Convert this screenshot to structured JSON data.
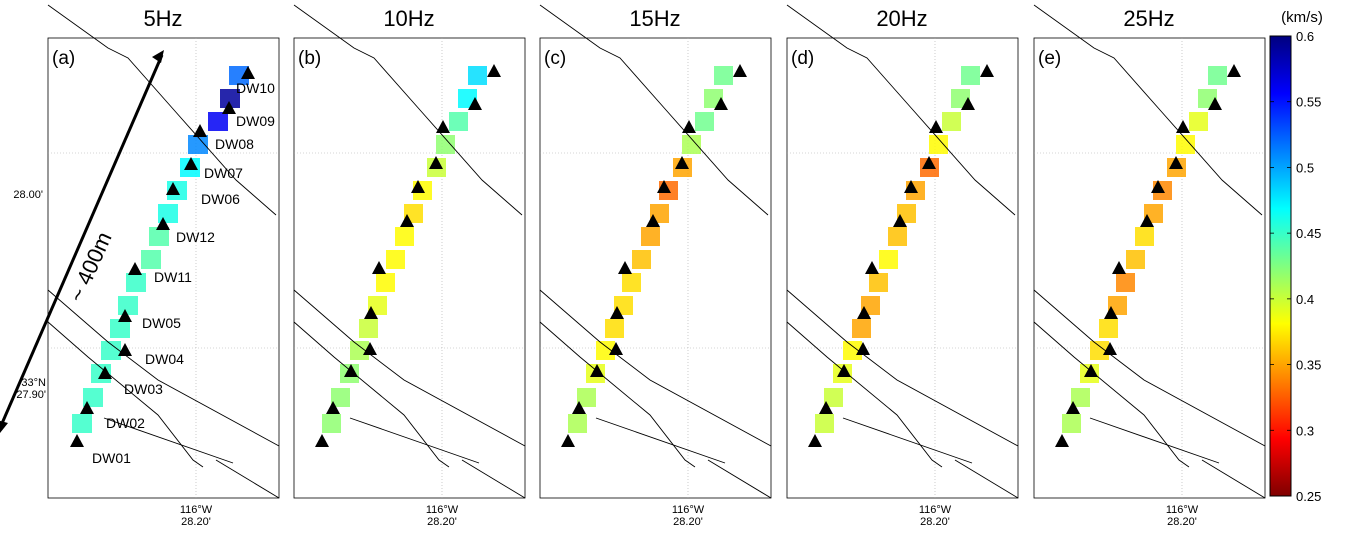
{
  "chart_data": {
    "type": "heatmap",
    "panels": [
      {
        "title": "5Hz",
        "label": "(a)",
        "values": [
          0.45,
          0.45,
          0.45,
          0.45,
          0.45,
          0.45,
          0.45,
          0.44,
          0.44,
          0.46,
          0.46,
          0.47,
          0.51,
          0.56,
          0.59,
          0.52
        ]
      },
      {
        "title": "10Hz",
        "label": "(b)",
        "values": [
          0.42,
          0.42,
          0.42,
          0.41,
          0.4,
          0.39,
          0.38,
          0.38,
          0.38,
          0.37,
          0.38,
          0.4,
          0.42,
          0.44,
          0.47,
          0.48
        ]
      },
      {
        "title": "15Hz",
        "label": "(c)",
        "values": [
          0.41,
          0.41,
          0.39,
          0.38,
          0.37,
          0.37,
          0.37,
          0.36,
          0.35,
          0.35,
          0.33,
          0.35,
          0.41,
          0.43,
          0.42,
          0.43
        ]
      },
      {
        "title": "20Hz",
        "label": "(d)",
        "values": [
          0.4,
          0.4,
          0.39,
          0.38,
          0.35,
          0.35,
          0.36,
          0.38,
          0.36,
          0.36,
          0.35,
          0.33,
          0.38,
          0.4,
          0.42,
          0.43
        ]
      },
      {
        "title": "25Hz",
        "label": "(e)",
        "values": [
          0.41,
          0.41,
          0.39,
          0.37,
          0.37,
          0.35,
          0.34,
          0.36,
          0.37,
          0.35,
          0.34,
          0.35,
          0.38,
          0.39,
          0.42,
          0.43
        ]
      }
    ],
    "stations": [
      "DW01",
      "DW02",
      "DW03",
      "DW04",
      "DW05",
      "DW11",
      "DW12",
      "DW06",
      "DW07",
      "DW08",
      "DW09",
      "DW10"
    ],
    "axes": {
      "y_ticks": [
        {
          "line1": "28.00'",
          "line2": ""
        },
        {
          "line1": "33°N",
          "line2": "27.90'"
        }
      ],
      "x_tick": {
        "line1": "116°W",
        "line2": "28.20'"
      }
    },
    "scale_label": "~ 400m",
    "colorbar": {
      "unit": "(km/s)",
      "range": [
        0.25,
        0.6
      ],
      "ticks": [
        "0.6",
        "0.55",
        "0.5",
        "0.45",
        "0.4",
        "0.35",
        "0.3",
        "0.25"
      ],
      "colormap": [
        "#7f0000",
        "#ff0000",
        "#ff8000",
        "#ffff00",
        "#80ff80",
        "#00ffff",
        "#0080ff",
        "#0000ff",
        "#00007f"
      ]
    }
  }
}
